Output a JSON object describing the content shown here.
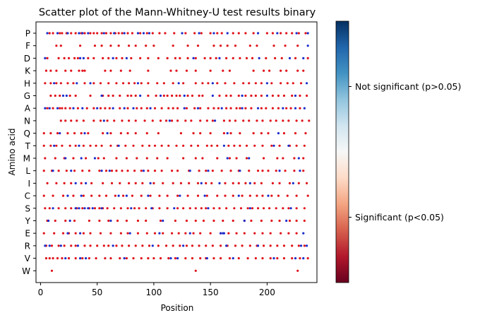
{
  "chart_data": {
    "type": "scatter",
    "title": "Scatter plot of the Mann-Whitney-U test results binary",
    "xlabel": "Position",
    "ylabel": "Amino acid",
    "xlim": [
      -4,
      244
    ],
    "xticks": [
      0,
      50,
      100,
      150,
      200
    ],
    "categories": [
      "P",
      "F",
      "D",
      "K",
      "H",
      "G",
      "A",
      "N",
      "Q",
      "T",
      "M",
      "L",
      "I",
      "C",
      "S",
      "Y",
      "E",
      "R",
      "V",
      "W"
    ],
    "grid": false,
    "point_classes": {
      "significant": {
        "label": "Significant (p<0.05)",
        "color": "#e0121a"
      },
      "not_significant": {
        "label": "Not significant (p>0.05)",
        "color": "#1a2ccc"
      }
    },
    "colorbar": {
      "colormap": "RdBu",
      "ticks": [
        {
          "label": "Not significant (p>0.05)",
          "value": 0.75
        },
        {
          "label": "Significant (p<0.05)",
          "value": 0.25
        }
      ]
    },
    "rows": [
      {
        "aa": "P",
        "sig": [
          8,
          11,
          17,
          19,
          23,
          27,
          31,
          36,
          39,
          44,
          47,
          50,
          54,
          58,
          62,
          66,
          69,
          72,
          77,
          81,
          88,
          94,
          99,
          105,
          110,
          118,
          128,
          136,
          142,
          150,
          156,
          160,
          170,
          175,
          181,
          188,
          200,
          205,
          212,
          217,
          222,
          228,
          234
        ],
        "nonsig": [
          6,
          15,
          24,
          34,
          37,
          42,
          56,
          65,
          74,
          86,
          91,
          96,
          125,
          140,
          153,
          165,
          192,
          209,
          226,
          236
        ]
      },
      {
        "aa": "F",
        "sig": [
          14,
          18,
          35,
          48,
          54,
          62,
          69,
          78,
          84,
          93,
          100,
          117,
          130,
          139,
          153,
          159,
          165,
          172,
          185,
          191,
          206,
          216,
          227
        ],
        "nonsig": [
          236
        ]
      },
      {
        "aa": "D",
        "sig": [
          6,
          16,
          21,
          25,
          30,
          33,
          42,
          47,
          55,
          60,
          67,
          72,
          80,
          88,
          95,
          104,
          112,
          119,
          123,
          130,
          137,
          145,
          150,
          155,
          164,
          170,
          176,
          182,
          187,
          199,
          207,
          213,
          225,
          236
        ],
        "nonsig": [
          4,
          35,
          38,
          64,
          76,
          135,
          158,
          193,
          220,
          232
        ]
      },
      {
        "aa": "K",
        "sig": [
          5,
          9,
          14,
          22,
          27,
          34,
          37,
          39,
          57,
          62,
          71,
          79,
          95,
          115,
          120,
          129,
          137,
          150,
          161,
          167,
          188,
          197,
          202,
          212,
          217,
          227,
          232
        ],
        "nonsig": []
      },
      {
        "aa": "H",
        "sig": [
          4,
          9,
          14,
          18,
          24,
          29,
          39,
          47,
          53,
          60,
          67,
          73,
          78,
          83,
          89,
          95,
          103,
          109,
          117,
          126,
          137,
          143,
          148,
          156,
          163,
          171,
          179,
          184,
          190,
          195,
          204,
          212,
          218,
          223,
          230
        ],
        "nonsig": [
          12,
          32,
          44,
          86,
          122,
          152,
          200,
          235
        ]
      },
      {
        "aa": "G",
        "sig": [
          9,
          13,
          17,
          26,
          31,
          44,
          55,
          60,
          64,
          70,
          77,
          80,
          84,
          95,
          102,
          109,
          112,
          116,
          120,
          123,
          130,
          134,
          140,
          143,
          158,
          164,
          168,
          175,
          181,
          186,
          190,
          195,
          205,
          210,
          215,
          222,
          229,
          235
        ],
        "nonsig": [
          20,
          23,
          54,
          88,
          106,
          127,
          152,
          178,
          200,
          225
        ]
      },
      {
        "aa": "A",
        "sig": [
          6,
          11,
          17,
          19,
          22,
          26,
          33,
          41,
          47,
          53,
          57,
          61,
          70,
          77,
          85,
          89,
          94,
          101,
          107,
          113,
          117,
          121,
          129,
          136,
          141,
          148,
          153,
          157,
          164,
          168,
          173,
          176,
          181,
          186,
          195,
          199,
          205,
          210,
          217,
          221,
          229
        ],
        "nonsig": [
          4,
          8,
          15,
          29,
          37,
          50,
          64,
          74,
          82,
          97,
          127,
          139,
          160,
          178,
          192,
          214,
          225,
          233
        ]
      },
      {
        "aa": "N",
        "sig": [
          18,
          22,
          27,
          32,
          38,
          47,
          53,
          59,
          65,
          72,
          78,
          84,
          92,
          99,
          106,
          111,
          116,
          121,
          128,
          133,
          141,
          147,
          152,
          162,
          167,
          172,
          179,
          184,
          191,
          196,
          203,
          208,
          214,
          219,
          226,
          231,
          237
        ],
        "nonsig": [
          56,
          114,
          154
        ]
      },
      {
        "aa": "Q",
        "sig": [
          3,
          9,
          15,
          24,
          30,
          36,
          42,
          55,
          62,
          71,
          77,
          84,
          94,
          104,
          124,
          135,
          141,
          150,
          162,
          168,
          176,
          188,
          195,
          201,
          215,
          225,
          234
        ],
        "nonsig": [
          17,
          39,
          59,
          165,
          210
        ]
      },
      {
        "aa": "T",
        "sig": [
          3,
          9,
          14,
          19,
          26,
          31,
          38,
          44,
          49,
          54,
          62,
          68,
          75,
          82,
          90,
          96,
          101,
          107,
          113,
          120,
          126,
          133,
          139,
          147,
          151,
          156,
          166,
          171,
          176,
          182,
          189,
          196,
          204,
          211,
          220,
          226,
          233
        ],
        "nonsig": [
          12,
          34,
          69,
          162,
          206,
          219
        ]
      },
      {
        "aa": "M",
        "sig": [
          4,
          13,
          21,
          29,
          40,
          51,
          56,
          67,
          76,
          85,
          94,
          103,
          112,
          126,
          137,
          143,
          156,
          167,
          173,
          182,
          197,
          209,
          214,
          224,
          232
        ],
        "nonsig": [
          22,
          36,
          48,
          165,
          184,
          228
        ]
      },
      {
        "aa": "L",
        "sig": [
          3,
          10,
          16,
          23,
          30,
          37,
          43,
          52,
          58,
          63,
          67,
          72,
          77,
          83,
          89,
          95,
          101,
          107,
          116,
          121,
          131,
          140,
          146,
          152,
          160,
          168,
          175,
          184,
          192,
          196,
          201,
          208,
          216,
          224,
          232
        ],
        "nonsig": [
          11,
          27,
          54,
          61,
          91,
          132,
          148,
          176,
          211,
          229
        ]
      },
      {
        "aa": "I",
        "sig": [
          6,
          14,
          21,
          27,
          36,
          45,
          55,
          63,
          70,
          78,
          84,
          90,
          100,
          108,
          117,
          124,
          131,
          139,
          146,
          151,
          163,
          170,
          175,
          181,
          189,
          195,
          205,
          211,
          220,
          228,
          235
        ],
        "nonsig": [
          31,
          40,
          97,
          142,
          158,
          185,
          223
        ]
      },
      {
        "aa": "C",
        "sig": [
          3,
          11,
          20,
          29,
          38,
          45,
          52,
          58,
          66,
          73,
          81,
          89,
          97,
          105,
          112,
          121,
          130,
          139,
          147,
          156,
          163,
          170,
          178,
          185,
          191,
          196,
          204,
          210,
          218,
          226,
          236
        ],
        "nonsig": [
          24,
          36,
          69,
          76,
          95,
          123,
          145,
          175,
          201
        ]
      },
      {
        "aa": "S",
        "sig": [
          4,
          8,
          16,
          22,
          27,
          32,
          37,
          43,
          48,
          52,
          55,
          59,
          65,
          71,
          77,
          83,
          87,
          93,
          99,
          105,
          112,
          121,
          126,
          132,
          137,
          142,
          146,
          153,
          158,
          164,
          171,
          177,
          183,
          187,
          192,
          197,
          202,
          208,
          214,
          219,
          226,
          233
        ],
        "nonsig": [
          11,
          31,
          34,
          39,
          42,
          46,
          54,
          80,
          98,
          118,
          148,
          185,
          221
        ]
      },
      {
        "aa": "Y",
        "sig": [
          6,
          13,
          22,
          30,
          43,
          52,
          60,
          68,
          76,
          86,
          93,
          106,
          119,
          129,
          137,
          144,
          153,
          161,
          170,
          180,
          186,
          195,
          204,
          211,
          220,
          226,
          233
        ],
        "nonsig": [
          7,
          26,
          62,
          108,
          180,
          217
        ]
      },
      {
        "aa": "E",
        "sig": [
          3,
          12,
          20,
          25,
          31,
          38,
          44,
          53,
          62,
          71,
          77,
          86,
          94,
          101,
          108,
          116,
          122,
          128,
          135,
          141,
          150,
          159,
          166,
          173,
          180,
          189,
          196,
          203,
          212,
          219,
          226
        ],
        "nonsig": [
          24,
          35,
          79,
          105,
          132,
          159,
          161,
          162,
          232
        ]
      },
      {
        "aa": "R",
        "sig": [
          5,
          10,
          16,
          21,
          27,
          31,
          39,
          44,
          50,
          56,
          60,
          67,
          72,
          78,
          84,
          90,
          96,
          104,
          111,
          117,
          123,
          129,
          134,
          140,
          146,
          152,
          159,
          165,
          172,
          178,
          185,
          191,
          197,
          203,
          209,
          215,
          222,
          228,
          233
        ],
        "nonsig": [
          4,
          8,
          18,
          33,
          64,
          99,
          126,
          164,
          192,
          230,
          235
        ]
      },
      {
        "aa": "V",
        "sig": [
          5,
          8,
          11,
          15,
          19,
          25,
          31,
          37,
          43,
          49,
          57,
          62,
          70,
          76,
          82,
          89,
          95,
          100,
          106,
          113,
          119,
          128,
          134,
          141,
          146,
          153,
          159,
          167,
          175,
          183,
          190,
          196,
          203,
          209,
          215,
          222,
          229,
          236
        ],
        "nonsig": [
          22,
          35,
          40,
          74,
          115,
          121,
          147,
          170,
          206,
          225,
          232
        ]
      },
      {
        "aa": "W",
        "sig": [
          10,
          137,
          227
        ],
        "nonsig": []
      }
    ]
  }
}
